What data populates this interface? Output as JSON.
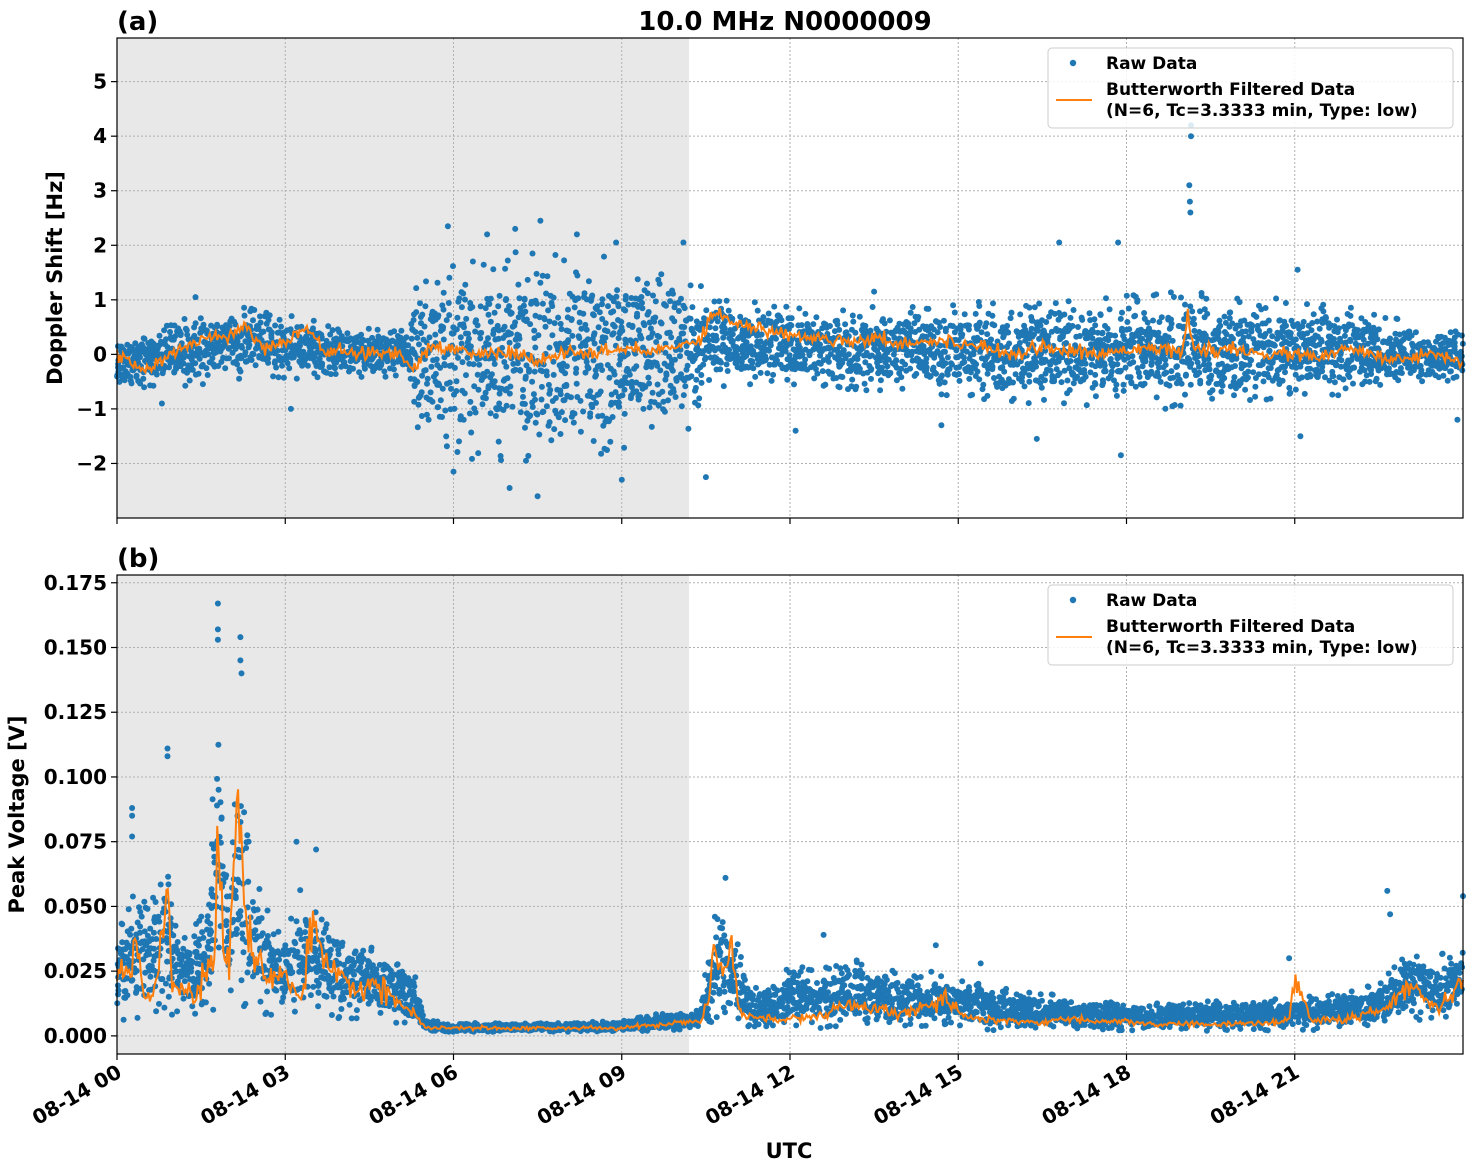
{
  "figure_title": "10.0 MHz N0000009",
  "xlabel": "UTC",
  "xticks": [
    "08-14 00",
    "08-14 03",
    "08-14 06",
    "08-14 09",
    "08-14 12",
    "08-14 15",
    "08-14 18",
    "08-14 21"
  ],
  "legend": {
    "raw": "Raw Data",
    "filtered_line1": "Butterworth Filtered Data",
    "filtered_line2": "(N=6, Tc=3.3333 min, Type: low)"
  },
  "colors": {
    "raw": "#1f77b4",
    "filtered": "#ff7f0e",
    "shade": "#e8e8e8",
    "grid": "#b0b0b0"
  },
  "chart_data": [
    {
      "type": "scatter",
      "panel_label": "(a)",
      "title": "10.0 MHz N0000009",
      "xlabel": "",
      "ylabel": "Doppler Shift [Hz]",
      "x_unit": "hours UTC since 08-14 00",
      "xlim": [
        0,
        24
      ],
      "ylim": [
        -3,
        5.8
      ],
      "yticks": [
        -2,
        -1,
        0,
        1,
        2,
        3,
        4,
        5
      ],
      "ytick_labels": [
        "−2",
        "−1",
        "0",
        "1",
        "2",
        "3",
        "4",
        "5"
      ],
      "grid": true,
      "legend_position": "top-right",
      "shaded_interval": [
        0,
        10.2
      ],
      "series": [
        {
          "name": "Raw Data",
          "style": "points",
          "envelope": {
            "x": [
              0,
              1,
              2,
              3,
              4,
              5.2,
              5.3,
              6,
              7,
              8,
              9,
              10.2,
              10.6,
              11,
              12,
              13,
              14,
              15,
              16,
              17,
              18,
              19,
              20,
              21,
              22,
              23,
              24
            ],
            "upper": [
              0.35,
              0.6,
              0.9,
              0.75,
              0.5,
              0.45,
              1.3,
              1.7,
              1.9,
              1.9,
              1.8,
              1.4,
              1.2,
              1.0,
              0.9,
              0.85,
              0.9,
              0.95,
              1.0,
              1.05,
              1.1,
              1.15,
              1.1,
              1.0,
              0.9,
              0.6,
              0.45
            ],
            "lower": [
              -0.65,
              -0.6,
              -0.5,
              -0.45,
              -0.45,
              -0.45,
              -1.5,
              -1.9,
              -2.1,
              -2.0,
              -1.8,
              -1.4,
              -0.7,
              -0.55,
              -0.6,
              -0.65,
              -0.7,
              -0.8,
              -0.9,
              -0.95,
              -1.0,
              -1.0,
              -0.95,
              -0.85,
              -0.75,
              -0.6,
              -0.5
            ]
          },
          "outliers": [
            {
              "x": 19.15,
              "y": 4.2
            },
            {
              "x": 19.15,
              "y": 4.0
            },
            {
              "x": 19.12,
              "y": 3.1
            },
            {
              "x": 19.13,
              "y": 2.8
            },
            {
              "x": 19.14,
              "y": 2.6
            },
            {
              "x": 7.55,
              "y": 2.45
            },
            {
              "x": 5.9,
              "y": 2.35
            },
            {
              "x": 6.6,
              "y": 2.2
            },
            {
              "x": 7.1,
              "y": 2.3
            },
            {
              "x": 8.2,
              "y": 2.2
            },
            {
              "x": 8.9,
              "y": 2.05
            },
            {
              "x": 17.85,
              "y": 2.05
            },
            {
              "x": 16.8,
              "y": 2.05
            },
            {
              "x": 10.1,
              "y": 2.05
            },
            {
              "x": 7.5,
              "y": -2.6
            },
            {
              "x": 7.0,
              "y": -2.45
            },
            {
              "x": 9.0,
              "y": -2.3
            },
            {
              "x": 6.0,
              "y": -2.15
            },
            {
              "x": 10.5,
              "y": -2.25
            },
            {
              "x": 17.9,
              "y": -1.85
            },
            {
              "x": 21.1,
              "y": -1.5
            },
            {
              "x": 16.4,
              "y": -1.55
            },
            {
              "x": 14.7,
              "y": -1.3
            },
            {
              "x": 3.1,
              "y": -1.0
            },
            {
              "x": 0.8,
              "y": -0.9
            },
            {
              "x": 1.4,
              "y": 1.05
            },
            {
              "x": 21.05,
              "y": 1.55
            },
            {
              "x": 23.9,
              "y": -1.2
            },
            {
              "x": 12.1,
              "y": -1.4
            },
            {
              "x": 13.5,
              "y": 1.15
            }
          ]
        },
        {
          "name": "Butterworth Filtered Data (N=6, Tc=3.3333 min, Type: low)",
          "style": "line",
          "x": [
            0,
            0.5,
            1,
            1.5,
            2,
            2.3,
            2.6,
            3,
            3.4,
            3.7,
            4,
            4.5,
            5,
            5.3,
            5.6,
            6,
            6.5,
            7,
            7.5,
            8,
            8.5,
            9,
            9.5,
            10,
            10.4,
            10.6,
            10.8,
            11,
            11.5,
            12,
            12.5,
            13,
            13.5,
            14,
            14.5,
            15,
            15.5,
            16,
            16.5,
            17,
            17.5,
            18,
            18.5,
            19,
            19.1,
            19.2,
            19.5,
            20,
            20.5,
            21,
            21.5,
            22,
            22.5,
            23,
            23.5,
            24
          ],
          "y": [
            0.0,
            -0.3,
            0.0,
            0.3,
            0.35,
            0.55,
            0.1,
            0.25,
            0.5,
            0.05,
            0.05,
            0.0,
            0.05,
            -0.25,
            0.15,
            0.1,
            0.0,
            0.05,
            -0.15,
            0.05,
            0.0,
            0.1,
            0.05,
            0.15,
            0.3,
            0.75,
            0.7,
            0.6,
            0.45,
            0.35,
            0.3,
            0.25,
            0.3,
            0.2,
            0.25,
            0.2,
            0.15,
            0.0,
            0.15,
            0.05,
            0.0,
            0.1,
            0.15,
            0.0,
            0.75,
            0.05,
            0.1,
            0.05,
            0.0,
            0.0,
            -0.05,
            0.1,
            -0.05,
            -0.1,
            0.05,
            -0.15
          ]
        }
      ]
    },
    {
      "type": "scatter",
      "panel_label": "(b)",
      "title": "",
      "xlabel": "UTC",
      "ylabel": "Peak Voltage [V]",
      "x_unit": "hours UTC since 08-14 00",
      "xlim": [
        0,
        24
      ],
      "ylim": [
        -0.007,
        0.178
      ],
      "yticks": [
        0.0,
        0.025,
        0.05,
        0.075,
        0.1,
        0.125,
        0.15,
        0.175
      ],
      "ytick_labels": [
        "0.000",
        "0.025",
        "0.050",
        "0.075",
        "0.100",
        "0.125",
        "0.150",
        "0.175"
      ],
      "grid": true,
      "legend_position": "top-right",
      "shaded_interval": [
        0,
        10.2
      ],
      "series": [
        {
          "name": "Raw Data",
          "style": "points",
          "envelope": {
            "x": [
              0,
              0.3,
              0.6,
              0.85,
              1.0,
              1.3,
              1.6,
              1.8,
              2.0,
              2.2,
              2.4,
              2.7,
              3.0,
              3.3,
              3.5,
              3.8,
              4.2,
              4.6,
              5.0,
              5.3,
              5.5,
              6,
              7,
              8,
              9,
              9.5,
              10,
              10.4,
              10.6,
              10.8,
              11.0,
              11.3,
              11.6,
              12,
              12.5,
              13,
              13.5,
              14,
              14.5,
              15,
              15.5,
              16,
              17,
              18,
              19,
              20,
              21,
              21.5,
              22,
              22.5,
              23,
              23.5,
              24
            ],
            "upper": [
              0.04,
              0.055,
              0.05,
              0.08,
              0.045,
              0.04,
              0.05,
              0.13,
              0.05,
              0.13,
              0.065,
              0.05,
              0.04,
              0.06,
              0.05,
              0.045,
              0.04,
              0.035,
              0.03,
              0.025,
              0.006,
              0.005,
              0.005,
              0.005,
              0.006,
              0.008,
              0.01,
              0.01,
              0.045,
              0.05,
              0.04,
              0.02,
              0.02,
              0.028,
              0.025,
              0.03,
              0.028,
              0.025,
              0.025,
              0.022,
              0.02,
              0.018,
              0.015,
              0.013,
              0.013,
              0.014,
              0.015,
              0.016,
              0.018,
              0.02,
              0.032,
              0.032,
              0.035
            ],
            "lower": [
              0.006,
              0.006,
              0.007,
              0.008,
              0.007,
              0.007,
              0.008,
              0.01,
              0.01,
              0.012,
              0.01,
              0.008,
              0.008,
              0.009,
              0.008,
              0.007,
              0.006,
              0.006,
              0.005,
              0.004,
              0.002,
              0.0015,
              0.0015,
              0.0015,
              0.0015,
              0.002,
              0.002,
              0.003,
              0.005,
              0.006,
              0.004,
              0.003,
              0.003,
              0.003,
              0.003,
              0.003,
              0.003,
              0.003,
              0.003,
              0.003,
              0.002,
              0.002,
              0.002,
              0.002,
              0.002,
              0.002,
              0.002,
              0.002,
              0.003,
              0.004,
              0.006,
              0.006,
              0.007
            ]
          },
          "outliers": [
            {
              "x": 1.8,
              "y": 0.167
            },
            {
              "x": 1.8,
              "y": 0.157
            },
            {
              "x": 1.8,
              "y": 0.153
            },
            {
              "x": 2.2,
              "y": 0.154
            },
            {
              "x": 2.2,
              "y": 0.145
            },
            {
              "x": 2.22,
              "y": 0.14
            },
            {
              "x": 0.9,
              "y": 0.111
            },
            {
              "x": 0.9,
              "y": 0.108
            },
            {
              "x": 0.27,
              "y": 0.088
            },
            {
              "x": 0.27,
              "y": 0.085
            },
            {
              "x": 0.27,
              "y": 0.077
            },
            {
              "x": 3.2,
              "y": 0.075
            },
            {
              "x": 3.55,
              "y": 0.072
            },
            {
              "x": 10.85,
              "y": 0.061
            },
            {
              "x": 22.65,
              "y": 0.056
            },
            {
              "x": 24.0,
              "y": 0.054
            },
            {
              "x": 22.7,
              "y": 0.047
            },
            {
              "x": 12.6,
              "y": 0.039
            },
            {
              "x": 14.6,
              "y": 0.035
            },
            {
              "x": 20.9,
              "y": 0.03
            },
            {
              "x": 15.4,
              "y": 0.028
            }
          ]
        },
        {
          "name": "Butterworth Filtered Data (N=6, Tc=3.3333 min, Type: low)",
          "style": "line",
          "x": [
            0,
            0.2,
            0.35,
            0.5,
            0.7,
            0.9,
            1.0,
            1.2,
            1.4,
            1.6,
            1.75,
            1.8,
            1.9,
            2.0,
            2.15,
            2.2,
            2.3,
            2.5,
            2.7,
            2.9,
            3.1,
            3.3,
            3.5,
            3.7,
            4.0,
            4.3,
            4.6,
            4.9,
            5.1,
            5.3,
            5.5,
            6,
            7,
            8,
            9,
            9.5,
            10,
            10.4,
            10.55,
            10.65,
            10.8,
            10.95,
            11.1,
            11.4,
            11.8,
            12.2,
            12.6,
            13,
            13.5,
            14,
            14.5,
            14.8,
            15.2,
            15.8,
            16.5,
            17,
            17.5,
            18,
            18.5,
            19,
            19.5,
            20,
            20.5,
            20.9,
            21.0,
            21.3,
            21.8,
            22.2,
            22.6,
            23,
            23.3,
            23.6,
            24
          ],
          "y": [
            0.022,
            0.025,
            0.035,
            0.015,
            0.02,
            0.062,
            0.02,
            0.018,
            0.015,
            0.028,
            0.025,
            0.082,
            0.03,
            0.028,
            0.09,
            0.085,
            0.04,
            0.03,
            0.02,
            0.025,
            0.02,
            0.015,
            0.045,
            0.025,
            0.022,
            0.018,
            0.02,
            0.015,
            0.012,
            0.008,
            0.003,
            0.003,
            0.003,
            0.003,
            0.003,
            0.004,
            0.005,
            0.006,
            0.012,
            0.035,
            0.025,
            0.033,
            0.01,
            0.007,
            0.006,
            0.007,
            0.008,
            0.012,
            0.01,
            0.009,
            0.011,
            0.014,
            0.007,
            0.006,
            0.005,
            0.007,
            0.005,
            0.006,
            0.004,
            0.005,
            0.004,
            0.005,
            0.005,
            0.006,
            0.022,
            0.006,
            0.006,
            0.008,
            0.01,
            0.02,
            0.015,
            0.012,
            0.022
          ]
        }
      ]
    }
  ]
}
